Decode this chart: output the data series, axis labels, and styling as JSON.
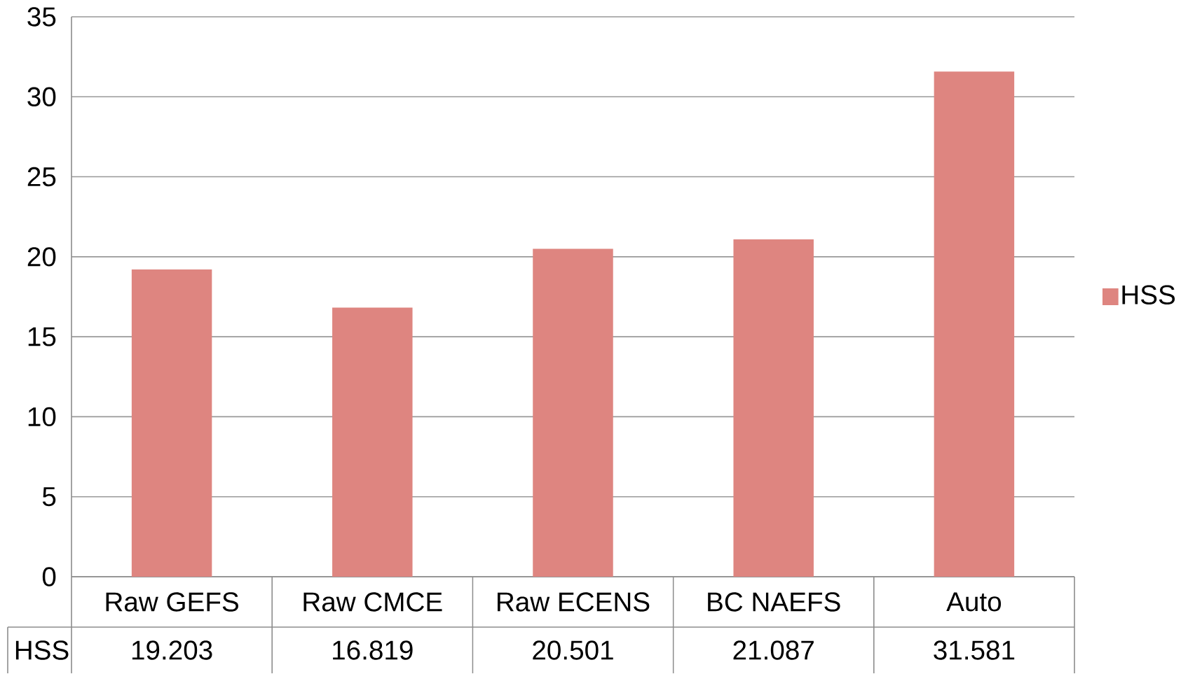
{
  "chart_data": {
    "type": "bar",
    "categories": [
      "Raw GEFS",
      "Raw CMCE",
      "Raw ECENS",
      "BC NAEFS",
      "Auto"
    ],
    "series": [
      {
        "name": "HSS",
        "color": "#de8580",
        "values": [
          19.203,
          16.819,
          20.501,
          21.087,
          31.581
        ]
      }
    ],
    "ylim": [
      0,
      35
    ],
    "yticks": [
      0,
      5,
      10,
      15,
      20,
      25,
      30,
      35
    ],
    "grid": "y",
    "legend": "right",
    "data_labels": true
  }
}
